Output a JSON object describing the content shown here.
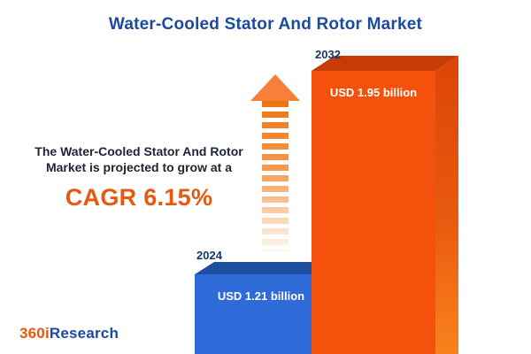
{
  "title": "Water-Cooled Stator And Rotor Market",
  "description": {
    "line1": "The Water-Cooled Stator And Rotor",
    "line2": "Market is projected to grow at a",
    "cagr": "CAGR 6.15%"
  },
  "logo": {
    "part1": "360i",
    "part2": "Research"
  },
  "colors": {
    "title_navy": "#1b4a9e",
    "accent_orange": "#e8590f",
    "bar_2024_blue": "#2e6bd8",
    "bar_2024_side": "#163a72",
    "bar_2032_orange": "#f4510c",
    "bar_2032_top": "#c73c04"
  },
  "chart_data": {
    "type": "bar",
    "title": "Water-Cooled Stator And Rotor Market",
    "categories": [
      "2024",
      "2032"
    ],
    "values": [
      1.21,
      1.95
    ],
    "unit": "USD billion",
    "ylim": [
      0,
      2
    ],
    "annotation": "CAGR 6.15%",
    "legend_position": "none",
    "grid": false,
    "bars": [
      {
        "year": "2024",
        "label": "USD 1.21 billion",
        "value": 1.21,
        "color": "#2e6bd8"
      },
      {
        "year": "2032",
        "label": "USD 1.95 billion",
        "value": 1.95,
        "color": "#f4510c"
      }
    ]
  }
}
